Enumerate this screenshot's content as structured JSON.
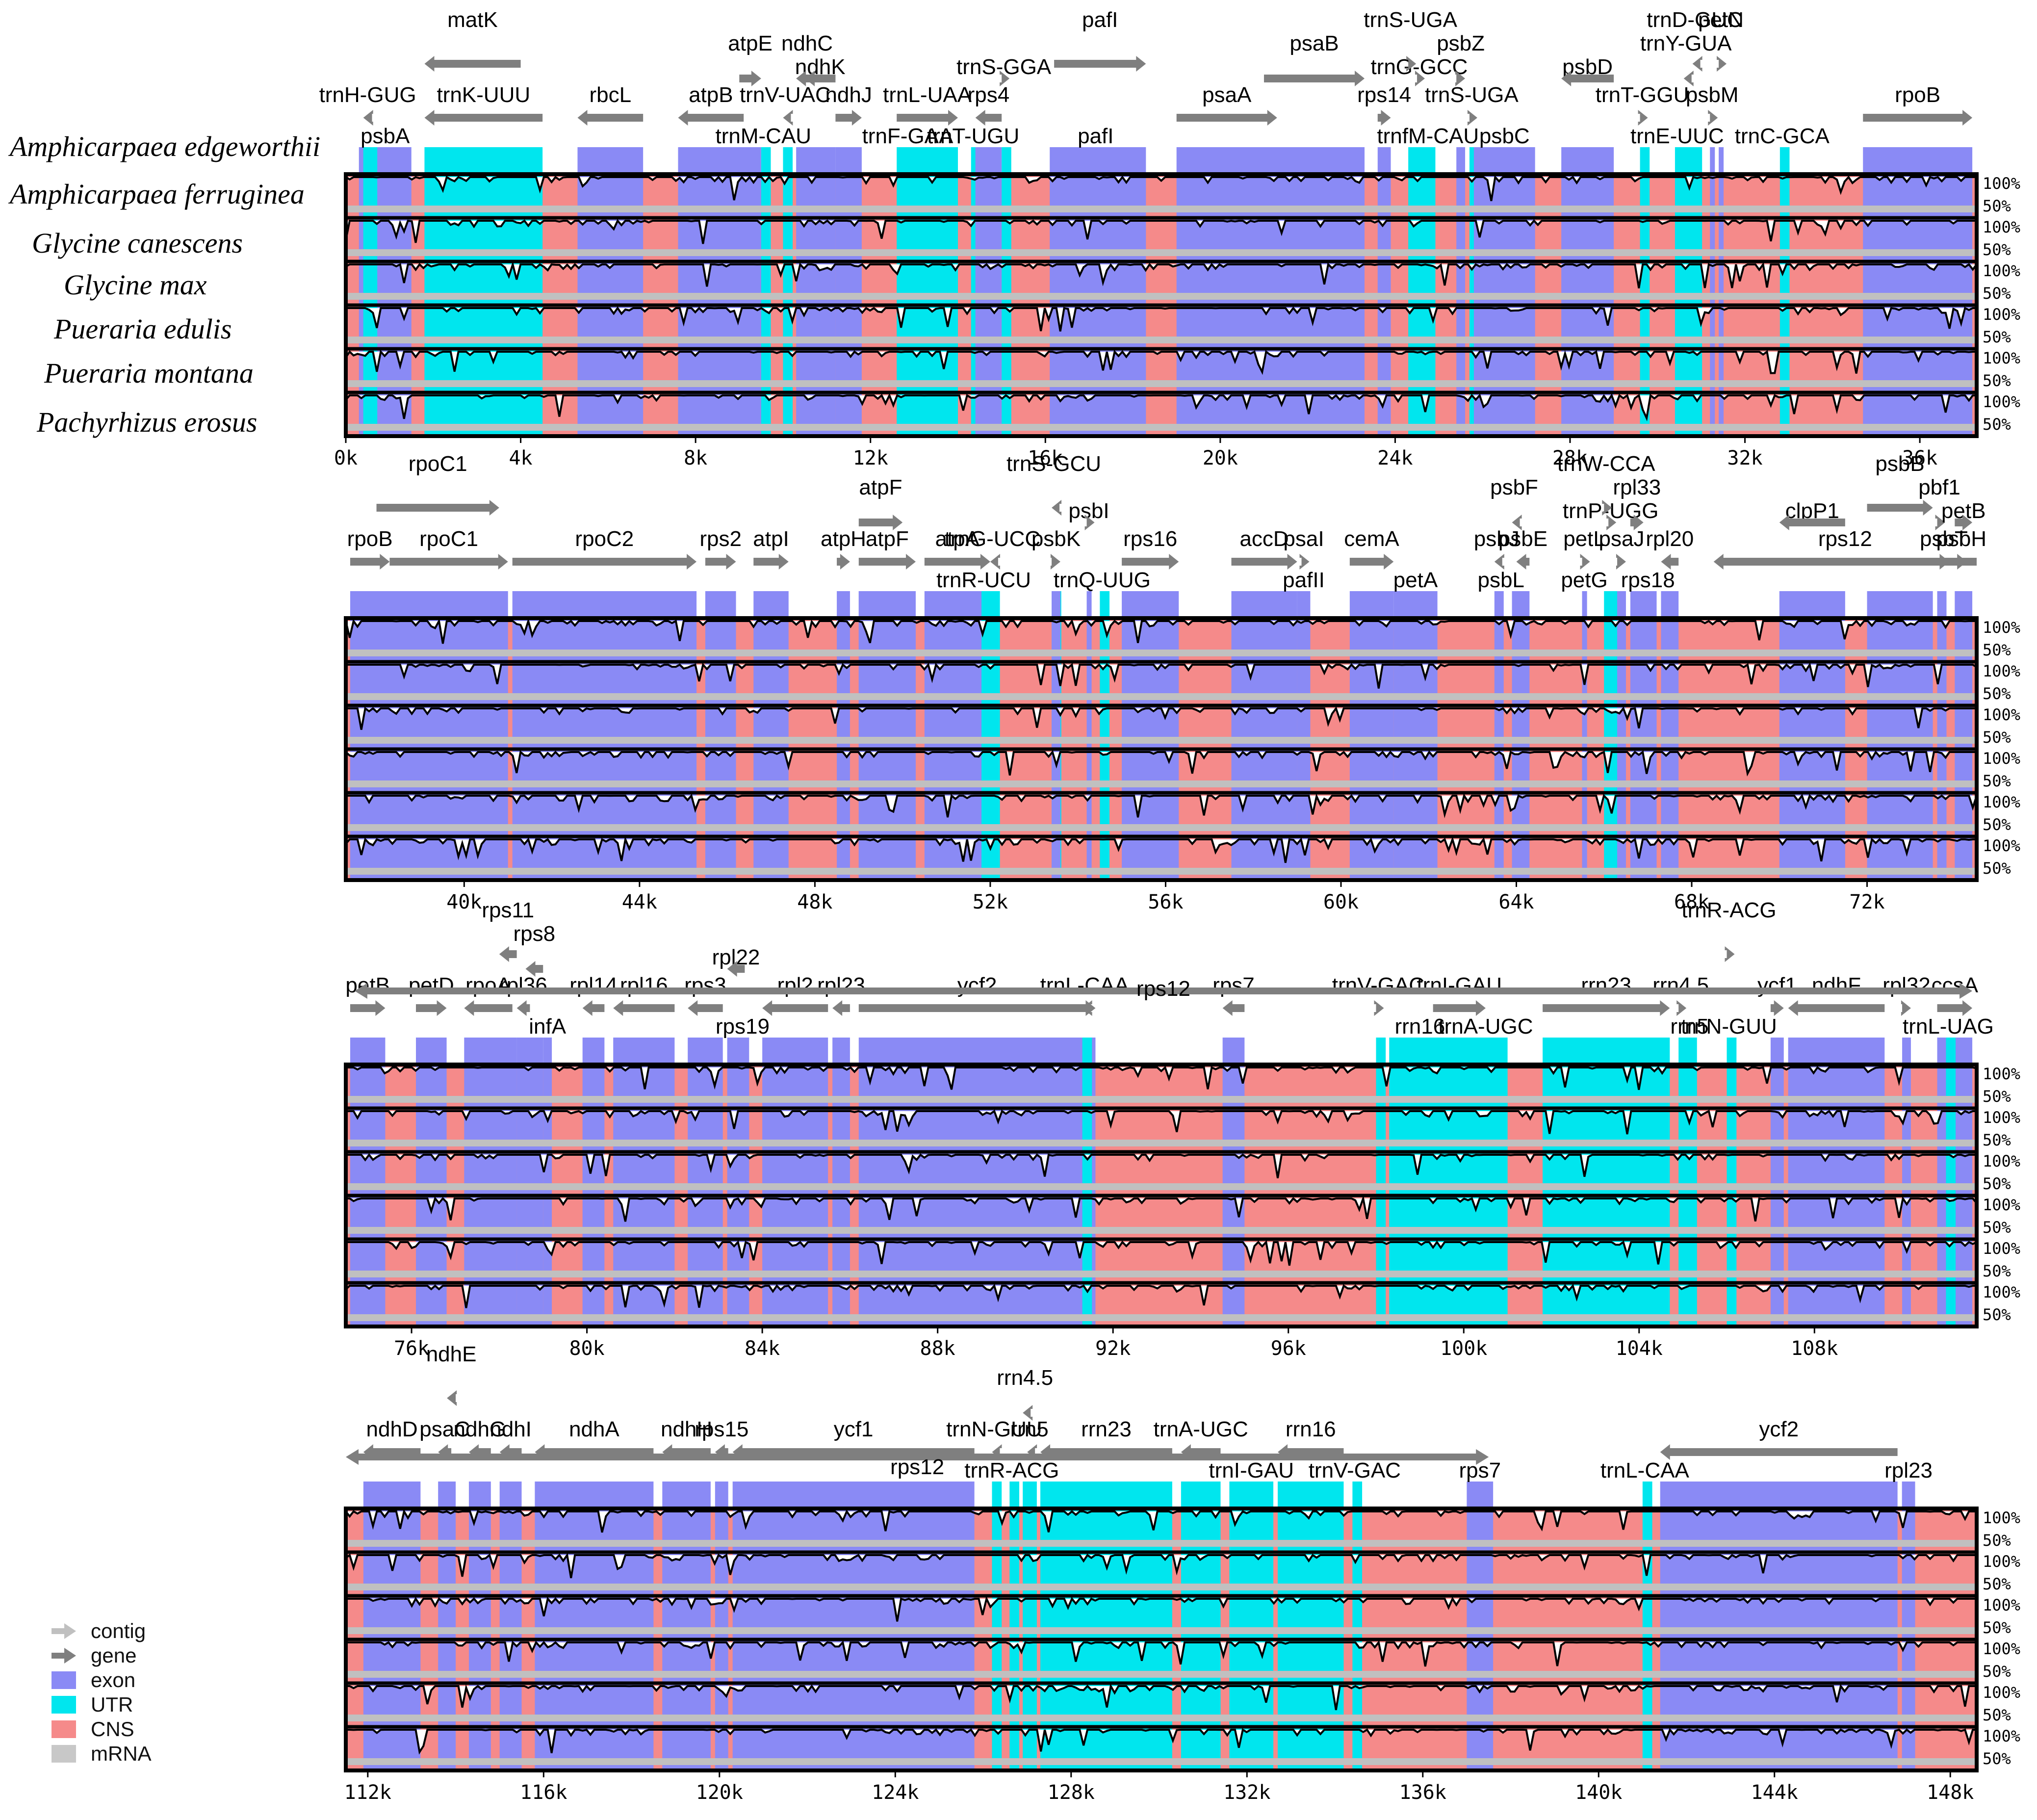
{
  "colors": {
    "exon": "#8a8af5",
    "utr": "#00e6ee",
    "cns": "#f58a8a",
    "mrna": "#c8c8c8",
    "gene_arrow": "#7f7f7f",
    "contig_arrow": "#c0c0c0",
    "frame": "#000000"
  },
  "species": [
    "Amphicarpaea edgeworthii",
    "Amphicarpaea ferruginea",
    "Glycine canescens",
    "Glycine max",
    "Pueraria edulis",
    "Pueraria montana",
    "Pachyrhizus erosus"
  ],
  "legend": [
    {
      "label": "contig",
      "kind": "contig"
    },
    {
      "label": "gene",
      "kind": "gene"
    },
    {
      "label": "exon",
      "kind": "exon"
    },
    {
      "label": "UTR",
      "kind": "utr"
    },
    {
      "label": "CNS",
      "kind": "cns"
    },
    {
      "label": "mRNA",
      "kind": "mrna"
    }
  ],
  "percent_labels": [
    "100%",
    "50%"
  ],
  "chart_data": [
    {
      "type": "mvista",
      "panel": 1,
      "range_kb": [
        0,
        37.3
      ],
      "tick_labels": [
        "0k",
        "4k",
        "8k",
        "12k",
        "16k",
        "20k",
        "24k",
        "28k",
        "32k",
        "36k"
      ],
      "tick_values_kb": [
        0,
        4,
        8,
        12,
        16,
        20,
        24,
        28,
        32,
        36
      ],
      "genes_top": [
        {
          "name": "matK",
          "start": 1.8,
          "end": 4.0,
          "dir": -1
        },
        {
          "name": "atpE",
          "start": 9.0,
          "end": 9.5,
          "dir": 1
        },
        {
          "name": "ndhK",
          "start": 10.5,
          "end": 11.2,
          "dir": -1
        },
        {
          "name": "pafI",
          "start": 16.2,
          "end": 18.3,
          "dir": 1
        },
        {
          "name": "psaB",
          "start": 21.0,
          "end": 23.3,
          "dir": 1
        },
        {
          "name": "trnG-GCC",
          "start": 24.5,
          "end": 24.6,
          "dir": 1
        },
        {
          "name": "petN",
          "start": 31.4,
          "end": 31.5,
          "dir": 1
        },
        {
          "name": "ndhC",
          "start": 10.3,
          "end": 10.8,
          "dir": -1
        },
        {
          "name": "trnS-GGA",
          "start": 15.0,
          "end": 15.1,
          "dir": 1
        },
        {
          "name": "trnS-UGA",
          "start": 24.3,
          "end": 24.4,
          "dir": 1
        },
        {
          "name": "psbZ",
          "start": 25.4,
          "end": 25.6,
          "dir": 1
        },
        {
          "name": "psbD",
          "start": 27.8,
          "end": 29.0,
          "dir": -1
        },
        {
          "name": "trnD-GUC",
          "start": 30.8,
          "end": 30.9,
          "dir": -1
        },
        {
          "name": "trnY-GUA",
          "start": 30.6,
          "end": 30.7,
          "dir": -1
        }
      ],
      "genes_mid": [
        {
          "name": "trnH-GUG",
          "start": 0.4,
          "end": 0.6,
          "dir": -1
        },
        {
          "name": "trnK-UUU",
          "start": 1.8,
          "end": 4.5,
          "dir": -1
        },
        {
          "name": "rbcL",
          "start": 5.3,
          "end": 6.8,
          "dir": -1
        },
        {
          "name": "atpB",
          "start": 7.6,
          "end": 9.1,
          "dir": -1
        },
        {
          "name": "trnV-UAC",
          "start": 10.0,
          "end": 10.1,
          "dir": -1
        },
        {
          "name": "ndhJ",
          "start": 11.2,
          "end": 11.8,
          "dir": 1
        },
        {
          "name": "trnL-UAA",
          "start": 12.6,
          "end": 14.0,
          "dir": 1
        },
        {
          "name": "rps4",
          "start": 14.4,
          "end": 15.0,
          "dir": -1
        },
        {
          "name": "psaA",
          "start": 19.0,
          "end": 21.3,
          "dir": 1
        },
        {
          "name": "rps14",
          "start": 23.6,
          "end": 23.9,
          "dir": 1
        },
        {
          "name": "trnS-UGA",
          "start": 25.7,
          "end": 25.8,
          "dir": 1
        },
        {
          "name": "trnT-GGU",
          "start": 29.6,
          "end": 29.7,
          "dir": 1
        },
        {
          "name": "psbM",
          "start": 31.2,
          "end": 31.3,
          "dir": 1
        },
        {
          "name": "rpoB",
          "start": 34.7,
          "end": 37.2,
          "dir": 1
        }
      ],
      "genes_low": [
        {
          "name": "psbA",
          "start": 0.3,
          "end": 1.5
        },
        {
          "name": "trnM-CAU",
          "start": 9.5,
          "end": 9.6
        },
        {
          "name": "trnF-GAA",
          "start": 12.8,
          "end": 12.9
        },
        {
          "name": "trnT-UGU",
          "start": 14.3,
          "end": 14.4
        },
        {
          "name": "pafI",
          "start": 16.1,
          "end": 18.2
        },
        {
          "name": "trnfM-CAU",
          "start": 24.7,
          "end": 24.8
        },
        {
          "name": "psbC",
          "start": 25.8,
          "end": 27.2
        },
        {
          "name": "trnE-UUC",
          "start": 30.4,
          "end": 30.5
        },
        {
          "name": "trnC-GCA",
          "start": 32.8,
          "end": 32.9
        }
      ]
    },
    {
      "type": "mvista",
      "panel": 2,
      "range_kb": [
        37.3,
        74.5
      ],
      "tick_labels": [
        "40k",
        "44k",
        "48k",
        "52k",
        "56k",
        "60k",
        "64k",
        "68k",
        "72k"
      ],
      "tick_values_kb": [
        40,
        44,
        48,
        52,
        56,
        60,
        64,
        68,
        72
      ],
      "genes_top": [
        {
          "name": "rpoC1",
          "start": 38.0,
          "end": 40.8,
          "dir": 1
        },
        {
          "name": "atpF",
          "start": 49.0,
          "end": 50.0,
          "dir": 1
        },
        {
          "name": "psbI",
          "start": 54.2,
          "end": 54.3,
          "dir": 1
        },
        {
          "name": "trnS-GCU",
          "start": 53.4,
          "end": 53.5,
          "dir": -1
        },
        {
          "name": "psbF",
          "start": 63.9,
          "end": 64.0,
          "dir": -1
        },
        {
          "name": "trnP-UGG",
          "start": 66.1,
          "end": 66.2,
          "dir": 1
        },
        {
          "name": "trnW-CCA",
          "start": 66.0,
          "end": 66.1,
          "dir": 1
        },
        {
          "name": "rpl33",
          "start": 66.6,
          "end": 66.9,
          "dir": 1
        },
        {
          "name": "clpP1",
          "start": 70.0,
          "end": 71.5,
          "dir": -1
        },
        {
          "name": "psbB",
          "start": 72.0,
          "end": 73.5,
          "dir": 1
        },
        {
          "name": "pbf1",
          "start": 73.6,
          "end": 73.7,
          "dir": 1
        },
        {
          "name": "petB",
          "start": 74.0,
          "end": 74.4,
          "dir": 1
        }
      ],
      "genes_mid": [
        {
          "name": "rpoB",
          "start": 37.4,
          "end": 38.3,
          "dir": 1
        },
        {
          "name": "rpoC1",
          "start": 38.3,
          "end": 41.0,
          "dir": 1
        },
        {
          "name": "rpoC2",
          "start": 41.1,
          "end": 45.3,
          "dir": 1
        },
        {
          "name": "rps2",
          "start": 45.5,
          "end": 46.2,
          "dir": 1
        },
        {
          "name": "atpI",
          "start": 46.6,
          "end": 47.4,
          "dir": 1
        },
        {
          "name": "atpH",
          "start": 48.5,
          "end": 48.8,
          "dir": 1
        },
        {
          "name": "atpF",
          "start": 49.0,
          "end": 50.3,
          "dir": 1
        },
        {
          "name": "atpA",
          "start": 50.5,
          "end": 52.0,
          "dir": 1
        },
        {
          "name": "trnG-UCC",
          "start": 52.0,
          "end": 52.1,
          "dir": -1
        },
        {
          "name": "psbK",
          "start": 53.4,
          "end": 53.6,
          "dir": 1
        },
        {
          "name": "rps16",
          "start": 55.0,
          "end": 56.3,
          "dir": 1
        },
        {
          "name": "accD",
          "start": 57.5,
          "end": 59.0,
          "dir": 1
        },
        {
          "name": "psaI",
          "start": 59.1,
          "end": 59.2,
          "dir": 1
        },
        {
          "name": "cemA",
          "start": 60.2,
          "end": 61.2,
          "dir": 1
        },
        {
          "name": "psbJ",
          "start": 63.5,
          "end": 63.6,
          "dir": -1
        },
        {
          "name": "psbE",
          "start": 64.0,
          "end": 64.3,
          "dir": -1
        },
        {
          "name": "petL",
          "start": 65.5,
          "end": 65.6,
          "dir": 1
        },
        {
          "name": "psaJ",
          "start": 66.3,
          "end": 66.5,
          "dir": 1
        },
        {
          "name": "rpl20",
          "start": 67.3,
          "end": 67.7,
          "dir": -1
        },
        {
          "name": "rps12",
          "start": 68.5,
          "end": 74.5,
          "dir": -1
        },
        {
          "name": "psbT",
          "start": 73.7,
          "end": 73.8,
          "dir": 1
        },
        {
          "name": "psbH",
          "start": 74.1,
          "end": 74.2,
          "dir": 1
        }
      ],
      "genes_low": [
        {
          "name": "trnR-UCU",
          "start": 51.8,
          "end": 51.9
        },
        {
          "name": "trnQ-UUG",
          "start": 54.5,
          "end": 54.6
        },
        {
          "name": "pafII",
          "start": 59.0,
          "end": 59.3
        },
        {
          "name": "petA",
          "start": 61.2,
          "end": 62.2
        },
        {
          "name": "psbL",
          "start": 63.6,
          "end": 63.7
        },
        {
          "name": "petG",
          "start": 65.5,
          "end": 65.6
        },
        {
          "name": "rps18",
          "start": 66.8,
          "end": 67.2
        }
      ]
    },
    {
      "type": "mvista",
      "panel": 3,
      "range_kb": [
        74.5,
        111.7
      ],
      "tick_labels": [
        "76k",
        "80k",
        "84k",
        "88k",
        "92k",
        "96k",
        "100k",
        "104k",
        "108k"
      ],
      "tick_values_kb": [
        76,
        80,
        84,
        88,
        92,
        96,
        100,
        104,
        108
      ],
      "genes_top": [
        {
          "name": "rps11",
          "start": 78.0,
          "end": 78.4,
          "dir": -1
        },
        {
          "name": "rps8",
          "start": 78.6,
          "end": 79.0,
          "dir": -1
        },
        {
          "name": "rpl22",
          "start": 83.2,
          "end": 83.6,
          "dir": -1
        },
        {
          "name": "trnR-ACG",
          "start": 106.0,
          "end": 106.1,
          "dir": 1
        }
      ],
      "genes_mid": [
        {
          "name": "petB",
          "start": 74.6,
          "end": 75.4,
          "dir": 1
        },
        {
          "name": "petD",
          "start": 76.1,
          "end": 76.8,
          "dir": 1
        },
        {
          "name": "rpoA",
          "start": 77.2,
          "end": 78.3,
          "dir": -1
        },
        {
          "name": "rpl36",
          "start": 78.4,
          "end": 78.7,
          "dir": -1
        },
        {
          "name": "rpl14",
          "start": 79.9,
          "end": 80.4,
          "dir": -1
        },
        {
          "name": "rpl16",
          "start": 80.6,
          "end": 82.0,
          "dir": -1
        },
        {
          "name": "rps3",
          "start": 82.3,
          "end": 83.1,
          "dir": -1
        },
        {
          "name": "rpl2",
          "start": 84.0,
          "end": 85.5,
          "dir": -1
        },
        {
          "name": "rpl23",
          "start": 85.6,
          "end": 86.0,
          "dir": -1
        },
        {
          "name": "ycf2",
          "start": 86.2,
          "end": 91.6,
          "dir": 1
        },
        {
          "name": "trnL-CAA",
          "start": 91.3,
          "end": 91.4,
          "dir": -1
        },
        {
          "name": "rps7",
          "start": 94.5,
          "end": 95.0,
          "dir": -1
        },
        {
          "name": "trnV-GAC",
          "start": 98.0,
          "end": 98.1,
          "dir": 1
        },
        {
          "name": "trnI-GAU",
          "start": 99.3,
          "end": 100.5,
          "dir": 1
        },
        {
          "name": "rrn23",
          "start": 101.8,
          "end": 104.7,
          "dir": 1
        },
        {
          "name": "rrn4.5",
          "start": 104.9,
          "end": 105.0,
          "dir": 1
        },
        {
          "name": "ycf1",
          "start": 107.0,
          "end": 107.3,
          "dir": 1
        },
        {
          "name": "ndhF",
          "start": 107.4,
          "end": 109.6,
          "dir": -1
        },
        {
          "name": "rpl32",
          "start": 110.0,
          "end": 110.2,
          "dir": 1
        },
        {
          "name": "ccsA",
          "start": 110.8,
          "end": 111.6,
          "dir": 1
        }
      ],
      "genes_low": [
        {
          "name": "infA",
          "start": 79.0,
          "end": 79.2
        },
        {
          "name": "rps19",
          "start": 83.4,
          "end": 83.7
        },
        {
          "name": "rps12",
          "start": 74.7,
          "end": 111.6
        },
        {
          "name": "rrn16",
          "start": 98.3,
          "end": 99.7
        },
        {
          "name": "trnA-UGC",
          "start": 100.0,
          "end": 101.0
        },
        {
          "name": "rrn5",
          "start": 105.1,
          "end": 105.2
        },
        {
          "name": "trnN-GUU",
          "start": 106.0,
          "end": 106.1
        },
        {
          "name": "trnL-UAG",
          "start": 111.0,
          "end": 111.1
        }
      ]
    },
    {
      "type": "mvista",
      "panel": 4,
      "range_kb": [
        111.5,
        148.6
      ],
      "tick_labels": [
        "112k",
        "116k",
        "120k",
        "124k",
        "128k",
        "132k",
        "136k",
        "140k",
        "144k",
        "148k"
      ],
      "tick_values_kb": [
        112,
        116,
        120,
        124,
        128,
        132,
        136,
        140,
        144,
        148
      ],
      "genes_top": [
        {
          "name": "ndhE",
          "start": 113.8,
          "end": 114.0,
          "dir": -1
        },
        {
          "name": "rrn4.5",
          "start": 126.9,
          "end": 127.0,
          "dir": -1
        }
      ],
      "genes_mid": [
        {
          "name": "ndhD",
          "start": 111.9,
          "end": 113.2,
          "dir": -1
        },
        {
          "name": "psaC",
          "start": 113.6,
          "end": 113.9,
          "dir": -1
        },
        {
          "name": "ndhG",
          "start": 114.3,
          "end": 114.8,
          "dir": -1
        },
        {
          "name": "ndhI",
          "start": 115.0,
          "end": 115.5,
          "dir": -1
        },
        {
          "name": "ndhA",
          "start": 115.8,
          "end": 118.5,
          "dir": -1
        },
        {
          "name": "ndhH",
          "start": 118.7,
          "end": 119.8,
          "dir": -1
        },
        {
          "name": "rps15",
          "start": 119.9,
          "end": 120.2,
          "dir": -1
        },
        {
          "name": "ycf1",
          "start": 120.3,
          "end": 125.8,
          "dir": -1
        },
        {
          "name": "trnN-GUU",
          "start": 126.2,
          "end": 126.3,
          "dir": -1
        },
        {
          "name": "rrn5",
          "start": 127.0,
          "end": 127.1,
          "dir": -1
        },
        {
          "name": "rrn23",
          "start": 127.3,
          "end": 130.3,
          "dir": -1
        },
        {
          "name": "trnA-UGC",
          "start": 130.5,
          "end": 131.4,
          "dir": -1
        },
        {
          "name": "rrn16",
          "start": 132.7,
          "end": 134.2,
          "dir": -1
        },
        {
          "name": "ycf2",
          "start": 141.4,
          "end": 146.8,
          "dir": -1
        }
      ],
      "genes_low": [
        {
          "name": "rps12",
          "start": 111.5,
          "end": 137.5
        },
        {
          "name": "trnR-ACG",
          "start": 126.6,
          "end": 126.7
        },
        {
          "name": "trnI-GAU",
          "start": 131.6,
          "end": 132.6
        },
        {
          "name": "trnV-GAC",
          "start": 134.4,
          "end": 134.5
        },
        {
          "name": "rps7",
          "start": 137.0,
          "end": 137.6
        },
        {
          "name": "trnL-CAA",
          "start": 141.0,
          "end": 141.1
        },
        {
          "name": "rpl23",
          "start": 146.9,
          "end": 147.2
        }
      ]
    }
  ]
}
